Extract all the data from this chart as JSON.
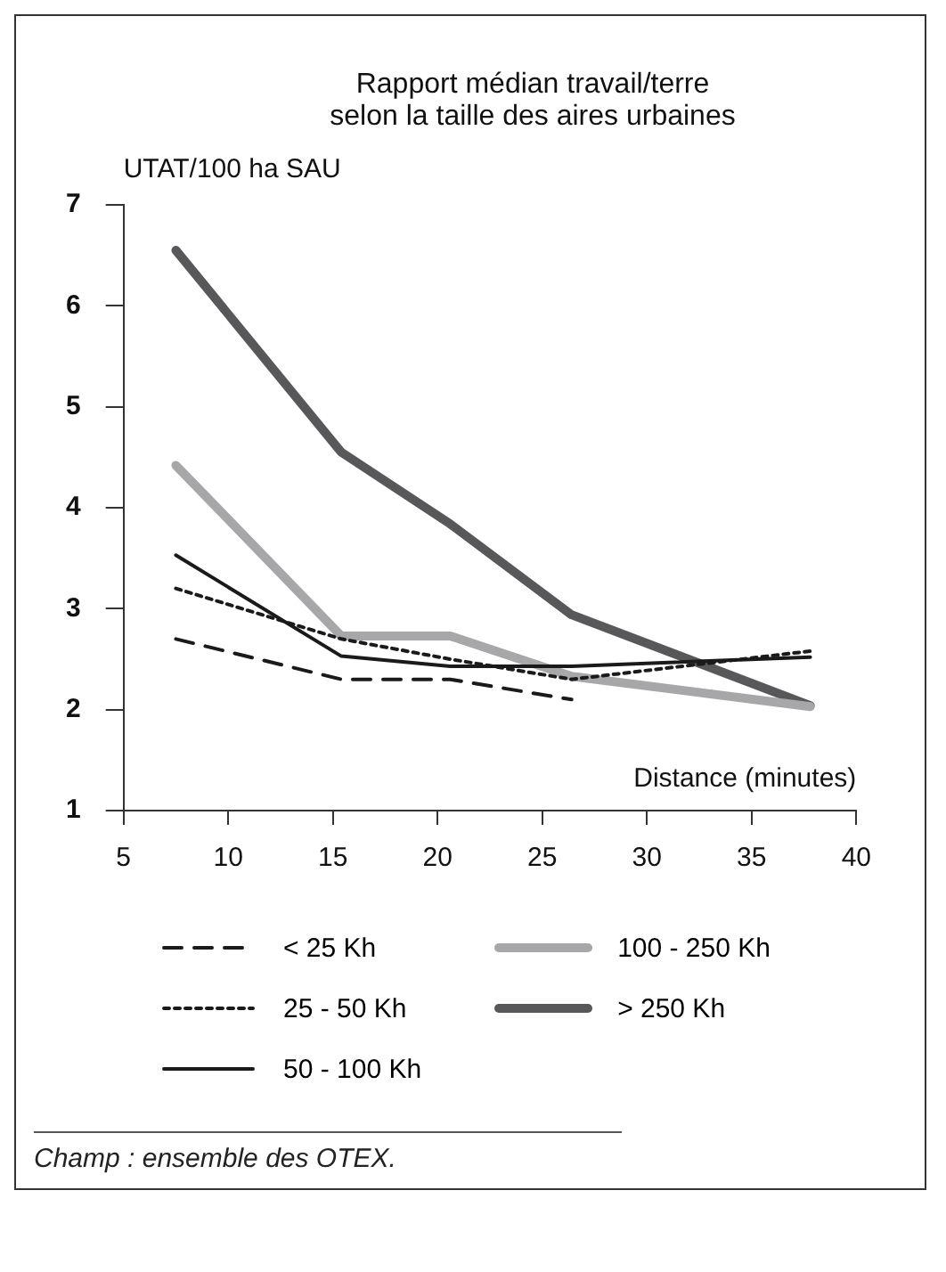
{
  "chart_data": {
    "type": "line",
    "title": "Rapport médian travail/terre\nselon la taille des aires urbaines",
    "ylabel": "UTAT/100 ha SAU",
    "xlabel": "Distance (minutes)",
    "x": [
      7.5,
      15.4,
      20.6,
      26.4,
      37.8
    ],
    "series": [
      {
        "name": "< 25 Kh",
        "color": "#1a1a1a",
        "line_style": "dashed",
        "values": [
          2.7,
          2.3,
          2.3,
          2.1,
          null
        ]
      },
      {
        "name": "25 - 50 Kh",
        "color": "#1a1a1a",
        "line_style": "dotted",
        "values": [
          3.2,
          2.7,
          2.5,
          2.3,
          2.58
        ]
      },
      {
        "name": "50 - 100 Kh",
        "color": "#1a1a1a",
        "line_style": "solid",
        "values": [
          3.53,
          2.53,
          2.43,
          2.43,
          2.52
        ]
      },
      {
        "name": "100 - 250 Kh",
        "color": "#a7a7aa",
        "line_style": "solid",
        "values": [
          4.42,
          2.73,
          2.73,
          2.33,
          2.03
        ]
      },
      {
        "name": "> 250 Kh",
        "color": "#58585a",
        "line_style": "solid",
        "values": [
          6.55,
          4.55,
          3.84,
          2.94,
          2.04
        ]
      }
    ],
    "xlim": [
      5,
      40
    ],
    "xticks": [
      5,
      10,
      15,
      20,
      25,
      30,
      35,
      40
    ],
    "ylim": [
      1,
      7
    ],
    "yticks": [
      1,
      2,
      3,
      4,
      5,
      6,
      7
    ],
    "grid": false,
    "legend": "bottom",
    "marker": "none",
    "annotations": [
      "Champ : ensemble des OTEX."
    ]
  }
}
